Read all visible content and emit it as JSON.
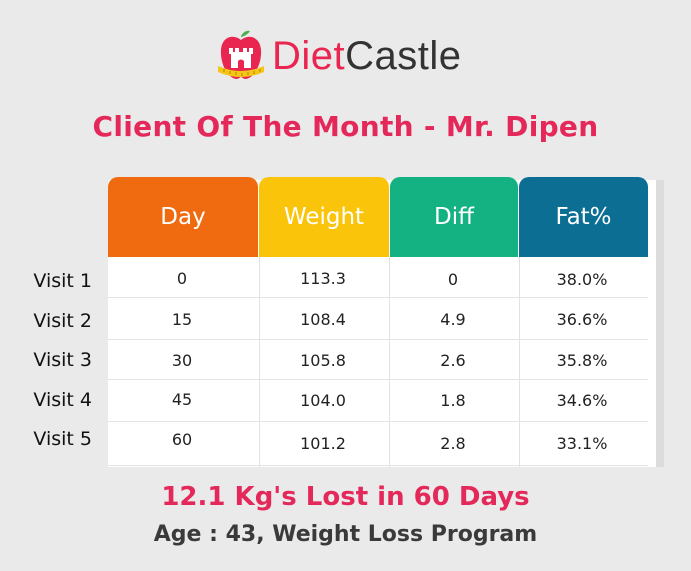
{
  "logo": {
    "word1": "Diet",
    "word2": "Castle",
    "icon": "apple-castle-icon"
  },
  "headline": "Client Of The Month - Mr. Dipen",
  "table": {
    "headers": [
      "Day",
      "Weight",
      "Diff",
      "Fat%"
    ],
    "header_colors": [
      "#f06a10",
      "#fac40a",
      "#14b182",
      "#0d6e94"
    ],
    "rows": [
      {
        "label": "Visit 1",
        "cells": [
          "0",
          "113.3",
          "0",
          "38.0%"
        ]
      },
      {
        "label": "Visit 2",
        "cells": [
          "15",
          "108.4",
          "4.9",
          "36.6%"
        ]
      },
      {
        "label": "Visit 3",
        "cells": [
          "30",
          "105.8",
          "2.6",
          "35.8%"
        ]
      },
      {
        "label": "Visit 4",
        "cells": [
          "45",
          "104.0",
          "1.8",
          "34.6%"
        ]
      },
      {
        "label": "Visit 5",
        "cells": [
          "60",
          "101.2",
          "2.8",
          "33.1%"
        ]
      }
    ]
  },
  "footer": {
    "summary": "12.1 Kg's Lost in 60 Days",
    "details": "Age : 43, Weight Loss Program"
  },
  "colors": {
    "accent": "#e4285a",
    "background": "#eaeaea"
  }
}
